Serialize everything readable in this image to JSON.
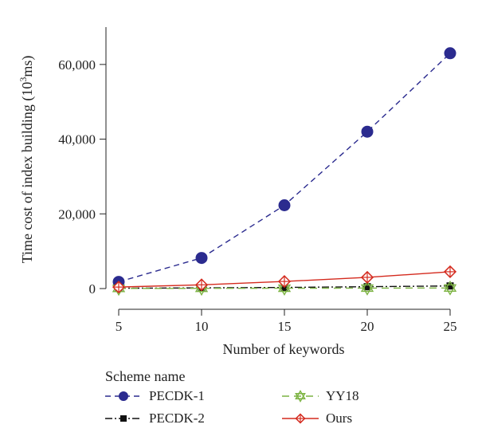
{
  "chart_data": {
    "type": "line",
    "xlabel": "Number of keywords",
    "ylabel_main": "Time cost of index building (10",
    "ylabel_sup": "3",
    "ylabel_unit": "ms)",
    "x": [
      5,
      10,
      15,
      20,
      25
    ],
    "x_ticks": [
      "5",
      "10",
      "15",
      "20",
      "25"
    ],
    "xlim": [
      5,
      25
    ],
    "y_ticks": [
      0,
      20000,
      40000,
      60000
    ],
    "y_tick_labels": [
      "0",
      "20,000",
      "40,000",
      "60,000"
    ],
    "ylim": [
      0,
      70000
    ],
    "grid": false,
    "legend_title": "Scheme name",
    "legend_position": "bottom",
    "series": [
      {
        "name": "PECDK-1",
        "values": [
          1800,
          8200,
          22300,
          42000,
          63000
        ],
        "color": "#2b2b8f",
        "dash": "7,5",
        "marker": "circle"
      },
      {
        "name": "PECDK-2",
        "values": [
          80,
          180,
          300,
          500,
          700
        ],
        "color": "#111111",
        "dash": "9,3,2,3",
        "marker": "square"
      },
      {
        "name": "YY18",
        "values": [
          30,
          60,
          90,
          120,
          150
        ],
        "color": "#7cb342",
        "dash": "9,6",
        "marker": "star"
      },
      {
        "name": "Ours",
        "values": [
          400,
          1000,
          1900,
          3000,
          4500
        ],
        "color": "#d42a1e",
        "dash": "",
        "marker": "diamond"
      }
    ]
  }
}
